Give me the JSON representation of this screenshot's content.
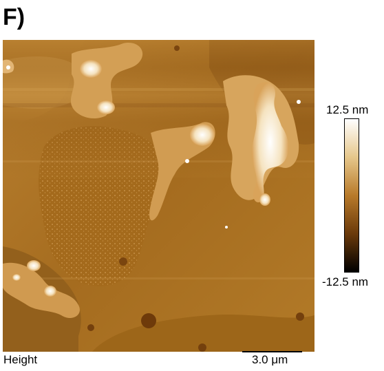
{
  "panel": {
    "label": "F)"
  },
  "image": {
    "channel": "Height"
  },
  "colorbar": {
    "max_label": "12.5 nm",
    "min_label": "-12.5 nm",
    "gradient_colors": [
      "#ffffff",
      "#e6c78b",
      "#b87a2a",
      "#6b3a0a",
      "#000000"
    ]
  },
  "scalebar": {
    "label": "3.0 μm"
  },
  "colors": {
    "substrate": "#a8701f",
    "terrace_upper": "#b27a26",
    "terrace_lower": "#8e5a17",
    "island_high": "#ffffff",
    "island_mid": "#d6a45c"
  }
}
